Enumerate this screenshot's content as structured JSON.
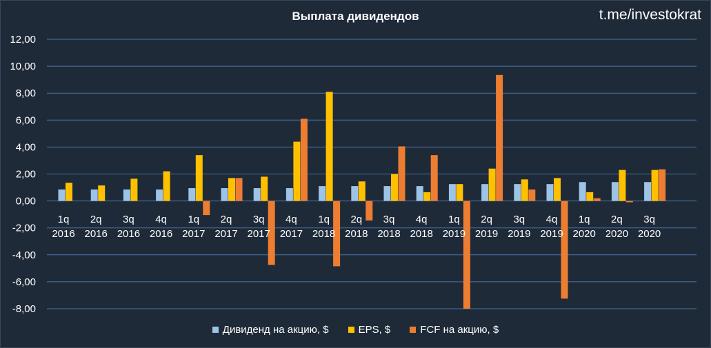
{
  "title": "Выплата дивидендов",
  "watermark": "t.me/investokrat",
  "chart_data": {
    "type": "bar",
    "categories": [
      {
        "q": "1q",
        "year": "2016"
      },
      {
        "q": "2q",
        "year": "2016"
      },
      {
        "q": "3q",
        "year": "2016"
      },
      {
        "q": "4q",
        "year": "2016"
      },
      {
        "q": "1q",
        "year": "2017"
      },
      {
        "q": "2q",
        "year": "2017"
      },
      {
        "q": "3q",
        "year": "2017"
      },
      {
        "q": "4q",
        "year": "2017"
      },
      {
        "q": "1q",
        "year": "2018"
      },
      {
        "q": "2q",
        "year": "2018"
      },
      {
        "q": "3q",
        "year": "2018"
      },
      {
        "q": "4q",
        "year": "2018"
      },
      {
        "q": "1q",
        "year": "2019"
      },
      {
        "q": "2q",
        "year": "2019"
      },
      {
        "q": "3q",
        "year": "2019"
      },
      {
        "q": "4q",
        "year": "2019"
      },
      {
        "q": "1q",
        "year": "2020"
      },
      {
        "q": "2q",
        "year": "2020"
      },
      {
        "q": "3q",
        "year": "2020"
      }
    ],
    "series": [
      {
        "name": "Дивиденд на акцию, $",
        "color": "#9dc3e6",
        "values": [
          0.85,
          0.85,
          0.85,
          0.85,
          0.95,
          0.95,
          0.95,
          0.95,
          1.1,
          1.1,
          1.1,
          1.1,
          1.25,
          1.25,
          1.25,
          1.25,
          1.4,
          1.4,
          1.4
        ]
      },
      {
        "name": "EPS, $",
        "color": "#ffc000",
        "values": [
          1.35,
          1.15,
          1.65,
          2.2,
          3.4,
          1.7,
          1.8,
          4.4,
          8.1,
          1.45,
          2.0,
          0.65,
          1.25,
          2.4,
          1.6,
          1.7,
          0.65,
          2.3,
          2.3
        ]
      },
      {
        "name": "FCF на акцию, $",
        "color": "#ed7d31",
        "values": [
          0,
          0,
          0,
          0,
          -1.05,
          1.7,
          -4.75,
          6.1,
          -4.85,
          -1.45,
          4.05,
          3.4,
          -8.0,
          9.35,
          0.85,
          -7.25,
          0.2,
          -0.1,
          2.35
        ]
      }
    ],
    "ylim": [
      -8,
      12
    ],
    "yticks": [
      "12,00",
      "10,00",
      "8,00",
      "6,00",
      "4,00",
      "2,00",
      "0,00",
      "-2,00",
      "-4,00",
      "-6,00",
      "-8,00"
    ],
    "grid": true,
    "legend_position": "bottom"
  }
}
